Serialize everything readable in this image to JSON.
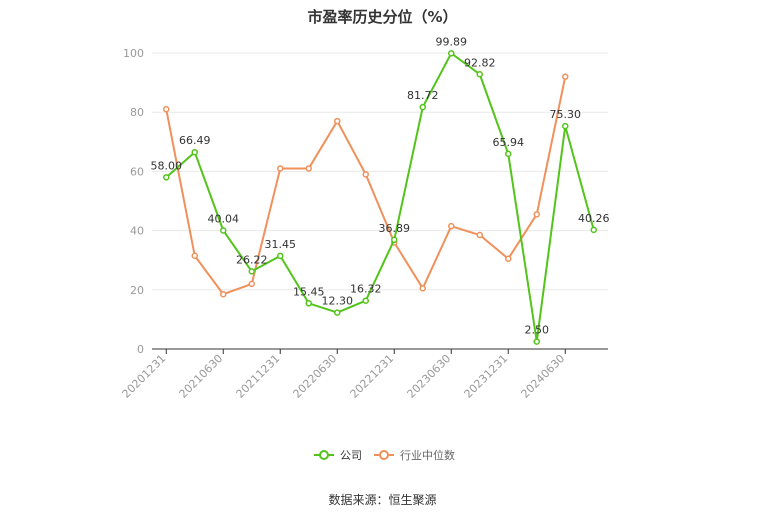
{
  "chart_data": {
    "type": "line",
    "title": "市盈率历史分位（%）",
    "categories": [
      "20201231",
      "20210331",
      "20210630",
      "20210930",
      "20211231",
      "20220331",
      "20220630",
      "20220930",
      "20221231",
      "20230331",
      "20230630",
      "20230930",
      "20231231",
      "20240331",
      "20240630",
      "20240930"
    ],
    "x_tick_labels": [
      "20201231",
      "20210630",
      "20211231",
      "20220630",
      "20221231",
      "20230630",
      "20231231",
      "20240630"
    ],
    "ylim": [
      0,
      100
    ],
    "y_ticks": [
      0,
      20,
      40,
      60,
      80,
      100
    ],
    "grid": true,
    "legend_position": "bottom",
    "series": [
      {
        "name": "公司",
        "color": "#52c41a",
        "values": [
          58.0,
          66.49,
          40.04,
          26.22,
          31.45,
          15.45,
          12.3,
          16.32,
          36.89,
          81.72,
          99.89,
          92.82,
          65.94,
          2.5,
          75.3,
          40.26
        ],
        "labels": [
          "58.00",
          "66.49",
          "40.04",
          "26.22",
          "31.45",
          "15.45",
          "12.30",
          "16.32",
          "36.89",
          "81.72",
          "99.89",
          "92.82",
          "65.94",
          "2.50",
          "75.30",
          "40.26"
        ]
      },
      {
        "name": "行业中位数",
        "color": "#f0905a",
        "values": [
          81,
          31.5,
          18.5,
          22,
          61,
          61,
          77,
          59,
          36,
          20.5,
          41.5,
          38.5,
          30.5,
          45.5,
          92,
          null
        ]
      }
    ]
  },
  "source": "数据来源：恒生聚源"
}
